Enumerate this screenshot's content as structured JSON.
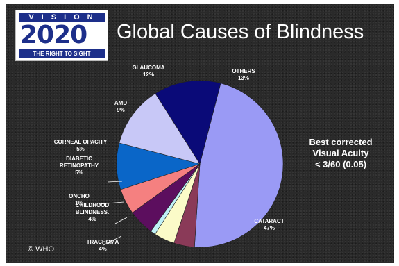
{
  "logo": {
    "top": "VISION",
    "number_start": "2020",
    "bottom": "THE RIGHT TO SIGHT"
  },
  "title": "Global Causes of Blindness",
  "note": [
    "Best corrected",
    "Visual Acuity",
    "< 3/60 (0.05)"
  ],
  "credit": "© WHO",
  "chart_data": {
    "type": "pie",
    "title": "Global Causes of Blindness",
    "slices": [
      {
        "label": [
          "CATARACT"
        ],
        "value": 47,
        "percent_label": "47%",
        "color": "#9a9af5"
      },
      {
        "label": [
          "TRACHOMA"
        ],
        "value": 4,
        "percent_label": "4%",
        "color": "#8a3a58"
      },
      {
        "label": [
          "CHILDHOOD",
          "BLINDNESS."
        ],
        "value": 4,
        "percent_label": "4%",
        "color": "#fbfbc8"
      },
      {
        "label": [
          "ONCHO"
        ],
        "value": 1,
        "percent_label": "1%",
        "color": "#bff0f7"
      },
      {
        "label": [
          "DIABETIC",
          "RETINOPATHY"
        ],
        "value": 5,
        "percent_label": "5%",
        "color": "#5c0e5e"
      },
      {
        "label": [
          "CORNEAL OPACITY"
        ],
        "value": 5,
        "percent_label": "5%",
        "color": "#f58080"
      },
      {
        "label": [
          "AMD"
        ],
        "value": 9,
        "percent_label": "9%",
        "color": "#0a66c8"
      },
      {
        "label": [
          "GLAUCOMA"
        ],
        "value": 12,
        "percent_label": "12%",
        "color": "#c8c8f7"
      },
      {
        "label": [
          "OTHERS"
        ],
        "value": 13,
        "percent_label": "13%",
        "color": "#0a0a78"
      }
    ]
  }
}
